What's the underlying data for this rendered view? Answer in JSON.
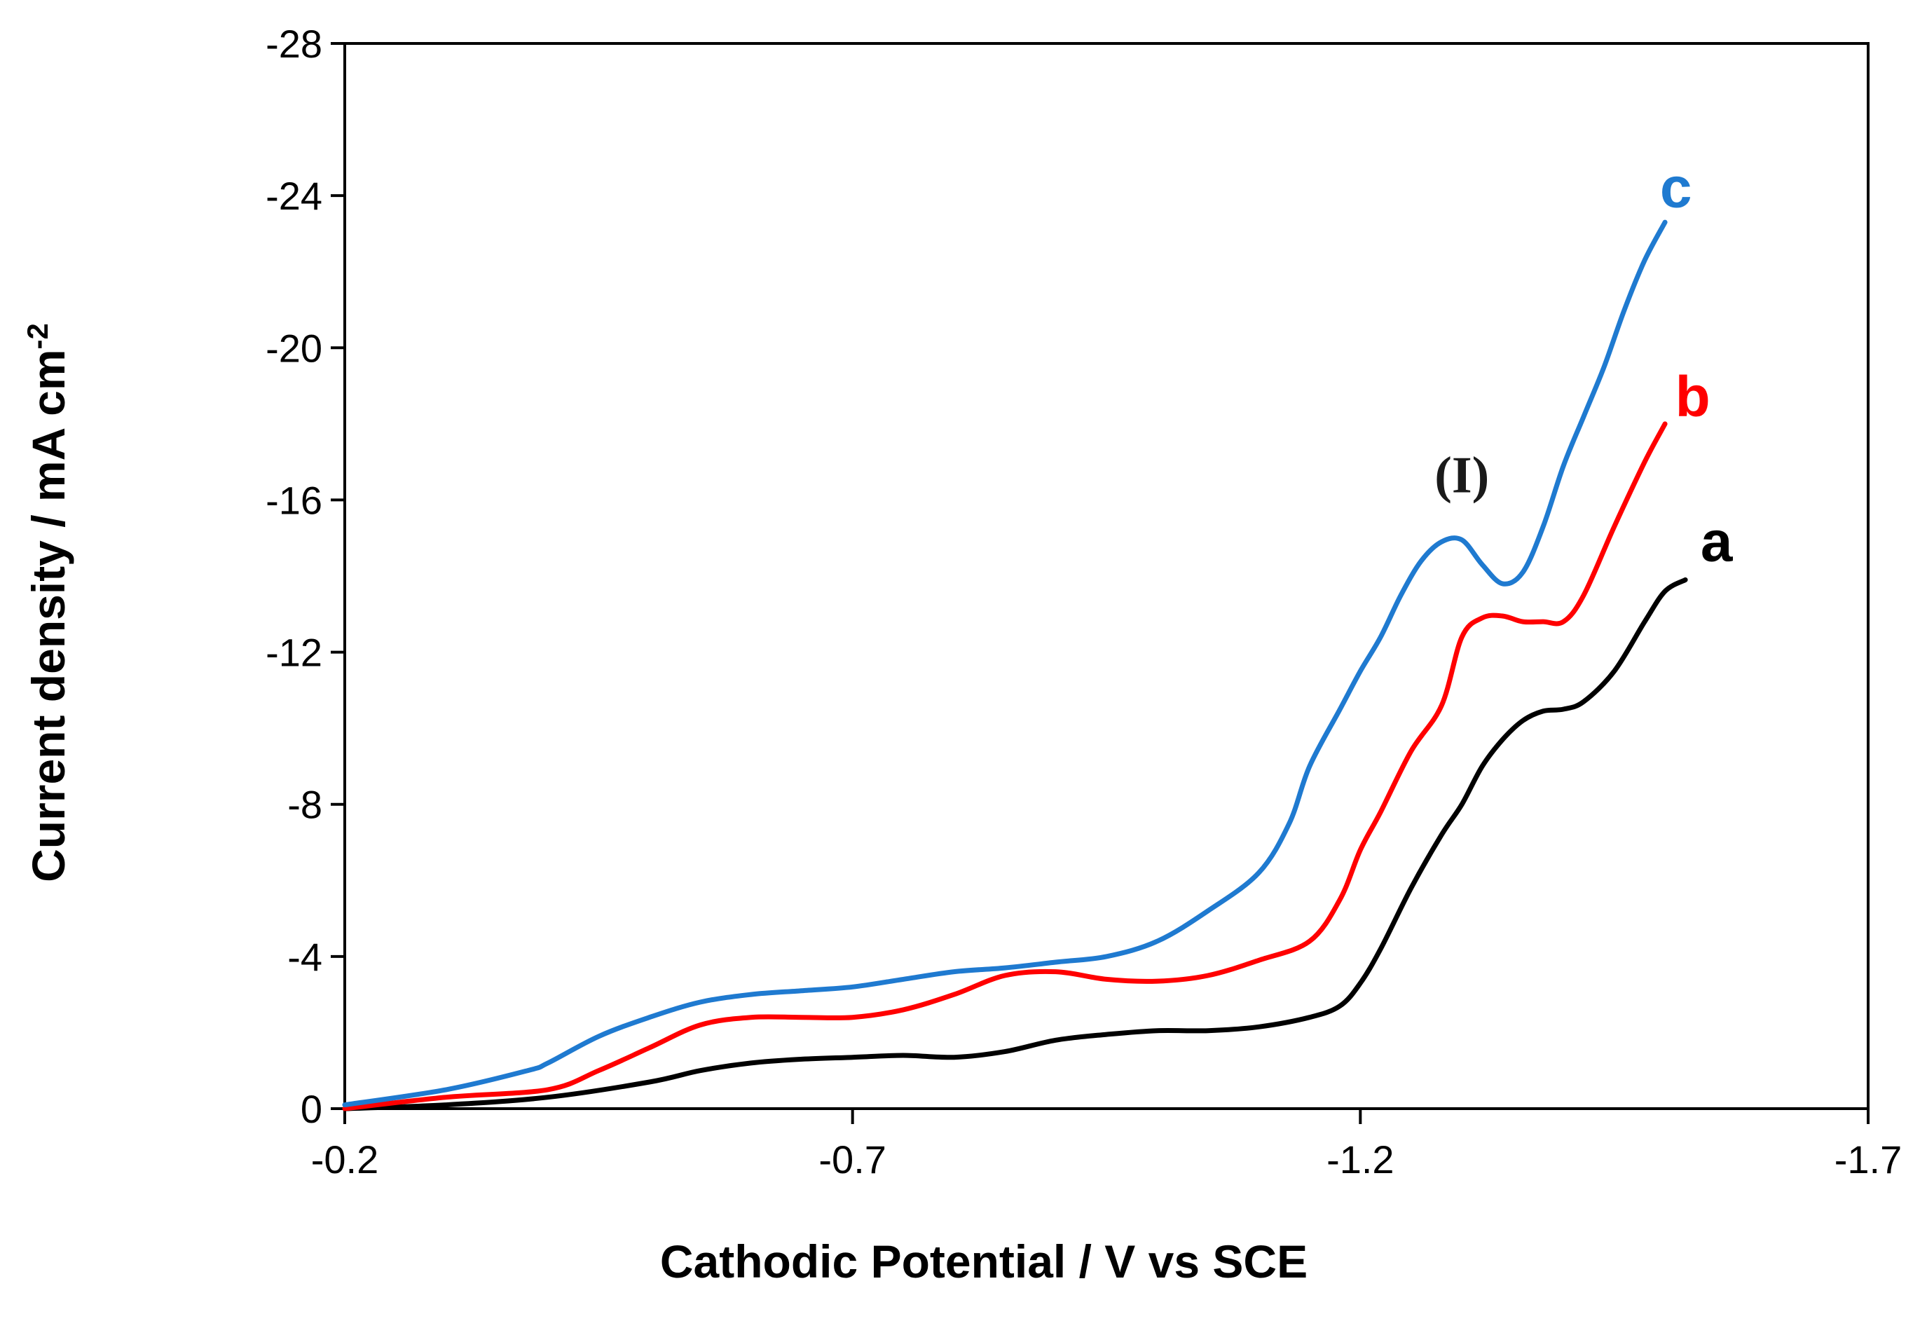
{
  "chart_data": {
    "type": "line",
    "title": "",
    "xlabel": "Cathodic Potential / V vs SCE",
    "ylabel_main": "Current density / mA cm",
    "ylabel_sup": "-2",
    "xlim": [
      -0.2,
      -1.7
    ],
    "ylim": [
      0,
      -28
    ],
    "xticks": [
      -0.2,
      -0.7,
      -1.2,
      -1.7
    ],
    "xtick_labels": [
      "-0.2",
      "-0.7",
      "-1.2",
      "-1.7"
    ],
    "yticks": [
      0,
      -4,
      -8,
      -12,
      -16,
      -20,
      -24,
      -28
    ],
    "ytick_labels": [
      "0",
      "-4",
      "-8",
      "-12",
      "-16",
      "-20",
      "-24",
      "-28"
    ],
    "annotations": [
      {
        "text": "(I)",
        "x": -1.3,
        "y": -16.2
      }
    ],
    "series": [
      {
        "name": "a",
        "color": "#000000",
        "label_at": {
          "x": -1.535,
          "y": -14.4
        },
        "x": [
          -0.2,
          -0.3,
          -0.4,
          -0.5,
          -0.55,
          -0.6,
          -0.65,
          -0.7,
          -0.75,
          -0.8,
          -0.85,
          -0.9,
          -0.95,
          -1.0,
          -1.05,
          -1.1,
          -1.15,
          -1.18,
          -1.2,
          -1.22,
          -1.25,
          -1.28,
          -1.3,
          -1.32,
          -1.34,
          -1.36,
          -1.38,
          -1.4,
          -1.42,
          -1.45,
          -1.48,
          -1.5,
          -1.52
        ],
        "y": [
          0,
          -0.1,
          -0.3,
          -0.7,
          -1.0,
          -1.2,
          -1.3,
          -1.35,
          -1.4,
          -1.35,
          -1.5,
          -1.8,
          -1.95,
          -2.05,
          -2.05,
          -2.15,
          -2.4,
          -2.7,
          -3.3,
          -4.2,
          -5.8,
          -7.2,
          -8.0,
          -9.0,
          -9.7,
          -10.2,
          -10.45,
          -10.5,
          -10.7,
          -11.5,
          -12.8,
          -13.6,
          -13.9
        ]
      },
      {
        "name": "b",
        "color": "#ff0000",
        "label_at": {
          "x": -1.51,
          "y": -18.2
        },
        "x": [
          -0.2,
          -0.3,
          -0.4,
          -0.45,
          -0.5,
          -0.55,
          -0.6,
          -0.65,
          -0.7,
          -0.75,
          -0.8,
          -0.85,
          -0.9,
          -0.95,
          -1.0,
          -1.05,
          -1.1,
          -1.15,
          -1.18,
          -1.2,
          -1.22,
          -1.25,
          -1.28,
          -1.3,
          -1.32,
          -1.34,
          -1.36,
          -1.38,
          -1.4,
          -1.42,
          -1.45,
          -1.48,
          -1.5
        ],
        "y": [
          0,
          -0.3,
          -0.5,
          -1.0,
          -1.6,
          -2.2,
          -2.4,
          -2.4,
          -2.4,
          -2.6,
          -3.0,
          -3.5,
          -3.6,
          -3.4,
          -3.35,
          -3.5,
          -3.9,
          -4.4,
          -5.5,
          -6.8,
          -7.8,
          -9.4,
          -10.6,
          -12.4,
          -12.9,
          -12.95,
          -12.8,
          -12.8,
          -12.8,
          -13.5,
          -15.3,
          -17.0,
          -18.0
        ]
      },
      {
        "name": "c",
        "color": "#1f7ad0",
        "label_at": {
          "x": -1.495,
          "y": -23.7
        },
        "x": [
          -0.2,
          -0.3,
          -0.38,
          -0.4,
          -0.45,
          -0.5,
          -0.55,
          -0.6,
          -0.65,
          -0.7,
          -0.75,
          -0.8,
          -0.85,
          -0.9,
          -0.95,
          -1.0,
          -1.05,
          -1.1,
          -1.13,
          -1.15,
          -1.18,
          -1.2,
          -1.22,
          -1.24,
          -1.26,
          -1.28,
          -1.3,
          -1.32,
          -1.34,
          -1.36,
          -1.38,
          -1.4,
          -1.42,
          -1.44,
          -1.46,
          -1.48,
          -1.5
        ],
        "y": [
          -0.1,
          -0.5,
          -1.0,
          -1.2,
          -1.9,
          -2.4,
          -2.8,
          -3.0,
          -3.1,
          -3.2,
          -3.4,
          -3.6,
          -3.7,
          -3.85,
          -4.0,
          -4.4,
          -5.2,
          -6.2,
          -7.5,
          -9.0,
          -10.5,
          -11.5,
          -12.4,
          -13.5,
          -14.4,
          -14.9,
          -14.95,
          -14.3,
          -13.8,
          -14.1,
          -15.3,
          -16.9,
          -18.2,
          -19.5,
          -21.0,
          -22.3,
          -23.3
        ]
      }
    ]
  }
}
